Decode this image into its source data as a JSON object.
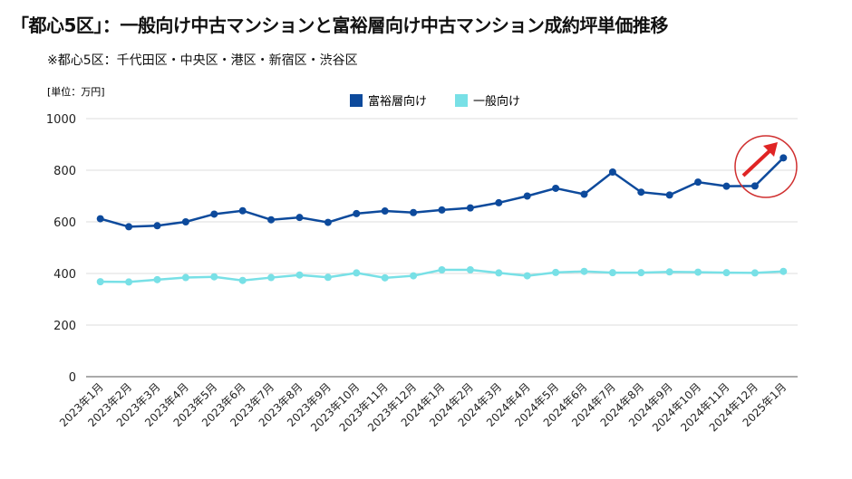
{
  "title": "「都心5区」：一般向け中古マンションと富裕層向け中古マンション成約坪単価推移",
  "subtitle": "※都心5区：千代田区・中央区・港区・新宿区・渋谷区",
  "chart_data": {
    "type": "line",
    "unit_label": "[単位：万円]",
    "ylim": [
      0,
      1000
    ],
    "yticks": [
      "0",
      "200",
      "400",
      "600",
      "800",
      "1000"
    ],
    "grid": true,
    "legend_position": "top-center",
    "categories": [
      "2023年1月",
      "2023年2月",
      "2023年3月",
      "2023年4月",
      "2023年5月",
      "2023年6月",
      "2023年7月",
      "2023年8月",
      "2023年9月",
      "2023年10月",
      "2023年11月",
      "2023年12月",
      "2024年1月",
      "2024年2月",
      "2024年3月",
      "2024年4月",
      "2024年5月",
      "2024年6月",
      "2024年7月",
      "2024年8月",
      "2024年9月",
      "2024年10月",
      "2024年11月",
      "2024年12月",
      "2025年1月"
    ],
    "series": [
      {
        "name": "富裕層向け",
        "color": "#0d4a9c",
        "values": [
          612,
          581,
          585,
          600,
          630,
          643,
          608,
          617,
          598,
          632,
          642,
          636,
          646,
          654,
          674,
          700,
          730,
          707,
          793,
          715,
          704,
          754,
          738,
          739,
          848
        ]
      },
      {
        "name": "一般向け",
        "color": "#78e0e6",
        "values": [
          368,
          367,
          376,
          384,
          387,
          373,
          384,
          394,
          385,
          402,
          383,
          391,
          414,
          414,
          402,
          391,
          404,
          408,
          403,
          403,
          406,
          405,
          403,
          402,
          408
        ]
      }
    ],
    "annotation": {
      "type": "upward-arrow-in-circle",
      "color": "#e02424",
      "target": "2025年1月"
    }
  }
}
